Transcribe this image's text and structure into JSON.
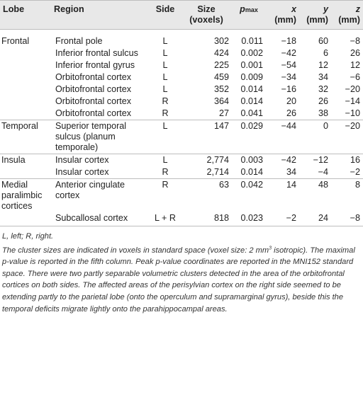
{
  "table": {
    "headers": {
      "lobe": "Lobe",
      "region": "Region",
      "side": "Side",
      "size_line1": "Size",
      "size_line2": "(voxels)",
      "p_main": "p",
      "p_sub": "max",
      "x_line1": "x",
      "y_line1": "y",
      "z_line1": "z",
      "unit": "(mm)"
    },
    "rows": [
      {
        "lobe": "Frontal",
        "region": "Frontal pole",
        "side": "L",
        "size": "302",
        "p": "0.011",
        "x": "−18",
        "y": "60",
        "z": "−8"
      },
      {
        "lobe": "",
        "region": "Inferior frontal sulcus",
        "side": "L",
        "size": "424",
        "p": "0.002",
        "x": "−42",
        "y": "6",
        "z": "26"
      },
      {
        "lobe": "",
        "region": "Inferior frontal gyrus",
        "side": "L",
        "size": "225",
        "p": "0.001",
        "x": "−54",
        "y": "12",
        "z": "12"
      },
      {
        "lobe": "",
        "region": "Orbitofrontal cortex",
        "side": "L",
        "size": "459",
        "p": "0.009",
        "x": "−34",
        "y": "34",
        "z": "−6"
      },
      {
        "lobe": "",
        "region": "Orbitofrontal cortex",
        "side": "L",
        "size": "352",
        "p": "0.014",
        "x": "−16",
        "y": "32",
        "z": "−20"
      },
      {
        "lobe": "",
        "region": "Orbitofrontal cortex",
        "side": "R",
        "size": "364",
        "p": "0.014",
        "x": "20",
        "y": "26",
        "z": "−14"
      },
      {
        "lobe": "",
        "region": "Orbitofrontal cortex",
        "side": "R",
        "size": "27",
        "p": "0.041",
        "x": "26",
        "y": "38",
        "z": "−10"
      },
      {
        "lobe": "Temporal",
        "region": "Superior temporal sulcus (planum temporale)",
        "side": "L",
        "size": "147",
        "p": "0.029",
        "x": "−44",
        "y": "0",
        "z": "−20"
      },
      {
        "lobe": "Insula",
        "region": "Insular cortex",
        "side": "L",
        "size": "2,774",
        "p": "0.003",
        "x": "−42",
        "y": "−12",
        "z": "16"
      },
      {
        "lobe": "",
        "region": "Insular cortex",
        "side": "R",
        "size": "2,714",
        "p": "0.014",
        "x": "34",
        "y": "−4",
        "z": "−2"
      },
      {
        "lobe": "Medial paralimbic cortices",
        "region": "Anterior cingulate cortex",
        "side": "R",
        "size": "63",
        "p": "0.042",
        "x": "14",
        "y": "48",
        "z": "8"
      },
      {
        "lobe": "",
        "region": "Subcallosal cortex",
        "side": "L + R",
        "size": "818",
        "p": "0.023",
        "x": "−2",
        "y": "24",
        "z": "−8"
      }
    ]
  },
  "notes": {
    "abbreviations": "L, left; R, right.",
    "text_before_sup": "The cluster sizes are indicated in voxels in standard space (voxel size: 2 mm",
    "sup": "3",
    "text_after_sup": " isotropic). The maximal p-value is reported in the fifth column. Peak p-value coordinates are reported in the MNI152 standard space. There were two partly separable volumetric clusters detected in the area of the orbitofrontal cortices on both sides. The affected areas of the perisylvian cortex on the right side seemed to be extending partly to the parietal lobe (onto the operculum and supramarginal gyrus), beside this the temporal deficits migrate lightly onto the parahippocampal areas."
  }
}
